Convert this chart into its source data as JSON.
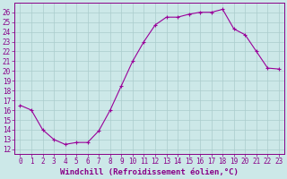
{
  "x": [
    0,
    1,
    2,
    3,
    4,
    5,
    6,
    7,
    8,
    9,
    10,
    11,
    12,
    13,
    14,
    15,
    16,
    17,
    18,
    19,
    20,
    21,
    22,
    23
  ],
  "y": [
    16.5,
    16.0,
    14.0,
    13.0,
    12.5,
    12.7,
    12.7,
    13.9,
    16.0,
    18.5,
    21.0,
    23.0,
    24.7,
    25.5,
    25.5,
    25.8,
    26.0,
    26.0,
    26.3,
    24.3,
    23.7,
    22.0,
    20.3,
    20.2
  ],
  "line_color": "#990099",
  "marker": "+",
  "bg_color": "#cce8e8",
  "grid_color": "#aacccc",
  "xlabel": "Windchill (Refroidissement éolien,°C)",
  "xlim": [
    -0.5,
    23.5
  ],
  "ylim": [
    11.5,
    27
  ],
  "yticks": [
    12,
    13,
    14,
    15,
    16,
    17,
    18,
    19,
    20,
    21,
    22,
    23,
    24,
    25,
    26
  ],
  "xtick_labels": [
    "0",
    "1",
    "2",
    "3",
    "4",
    "5",
    "6",
    "7",
    "8",
    "9",
    "10",
    "11",
    "12",
    "13",
    "14",
    "15",
    "16",
    "17",
    "18",
    "19",
    "20",
    "21",
    "22",
    "23"
  ],
  "tick_color": "#880088",
  "label_color": "#880088",
  "spine_color": "#880088",
  "font_size": 5.5,
  "xlabel_fontsize": 6.5,
  "marker_size": 3,
  "linewidth": 0.8
}
